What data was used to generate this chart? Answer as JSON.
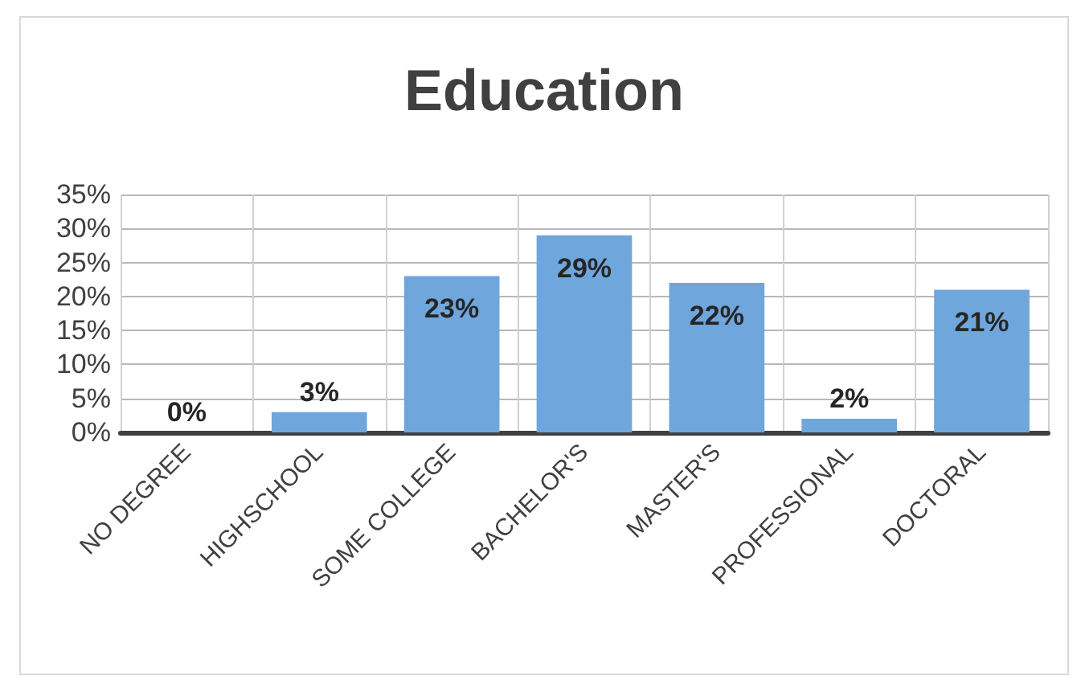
{
  "chart_data": {
    "type": "bar",
    "title": "Education",
    "categories": [
      "NO DEGREE",
      "HIGHSCHOOL",
      "SOME COLLEGE",
      "BACHELOR'S",
      "MASTER'S",
      "PROFESSIONAL",
      "DOCTORAL"
    ],
    "values": [
      0,
      3,
      23,
      29,
      22,
      2,
      21
    ],
    "value_labels": [
      "0%",
      "3%",
      "23%",
      "29%",
      "22%",
      "2%",
      "21%"
    ],
    "color": "#6fa6dc",
    "ylim": [
      0,
      35
    ],
    "yticks": [
      {
        "value": 0,
        "label": "0%"
      },
      {
        "value": 5,
        "label": "5%"
      },
      {
        "value": 10,
        "label": "10%"
      },
      {
        "value": 15,
        "label": "15%"
      },
      {
        "value": 20,
        "label": "20%"
      },
      {
        "value": 25,
        "label": "25%"
      },
      {
        "value": 30,
        "label": "30%"
      },
      {
        "value": 35,
        "label": "35%"
      }
    ],
    "grid": true
  }
}
